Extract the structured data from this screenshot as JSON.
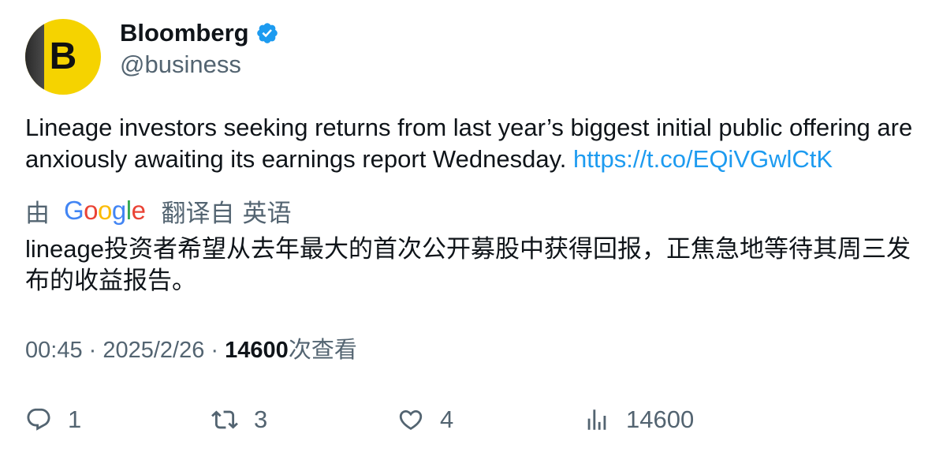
{
  "author": {
    "display_name": "Bloomberg",
    "handle": "@business",
    "avatar_letter": "B",
    "verified": true
  },
  "tweet": {
    "text": "Lineage investors seeking returns from last year’s biggest initial public offering are anxiously awaiting its earnings report Wednesday. ",
    "link": "https://t.co/EQiVGwlCtK"
  },
  "translation": {
    "by_label": "由",
    "provider": "Google",
    "from_label": "翻译自",
    "language": "英语",
    "text": "lineage投资者希望从去年最大的首次公开募股中获得回报，正焦急地等待其周三发布的收益报告。"
  },
  "meta": {
    "time": "00:45",
    "separator": " · ",
    "date": "2025/2/26",
    "views_count": "14600",
    "views_label": "次查看"
  },
  "actions": {
    "reply_count": "1",
    "retweet_count": "3",
    "like_count": "4",
    "views_count": "14600"
  },
  "colors": {
    "link": "#1d9bf0",
    "secondary_text": "#536471",
    "primary_text": "#0f1419",
    "avatar_bg": "#f5d300",
    "verified": "#1d9bf0"
  },
  "icons": {
    "verified": "verified-badge-icon",
    "reply": "reply-icon",
    "retweet": "retweet-icon",
    "like": "heart-icon",
    "views": "views-chart-icon"
  }
}
